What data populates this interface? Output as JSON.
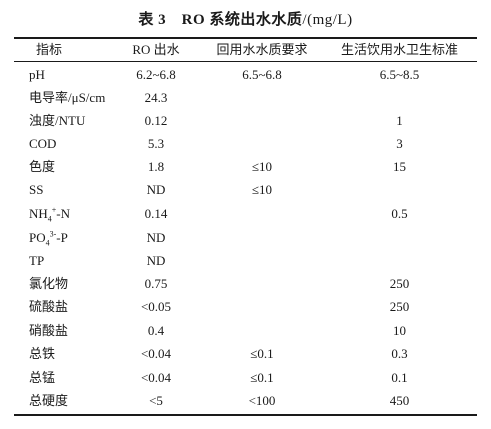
{
  "title": {
    "label": "表 3　RO 系统出水水质",
    "unit": "/(mg/L)"
  },
  "table": {
    "headers": {
      "indicator": "指标",
      "ro": "RO 出水",
      "reuse": "回用水水质要求",
      "standard": "生活饮用水卫生标准"
    },
    "rows": [
      {
        "name": "pH",
        "ro": "6.2~6.8",
        "reuse": "6.5~6.8",
        "standard": "6.5~8.5"
      },
      {
        "name": "电导率/μS/cm",
        "ro": "24.3",
        "reuse": "",
        "standard": ""
      },
      {
        "name": "浊度/NTU",
        "ro": "0.12",
        "reuse": "",
        "standard": "1"
      },
      {
        "name": "COD",
        "ro": "5.3",
        "reuse": "",
        "standard": "3"
      },
      {
        "name": "色度",
        "ro": "1.8",
        "reuse": "≤10",
        "standard": "15"
      },
      {
        "name": "SS",
        "ro": "ND",
        "reuse": "≤10",
        "standard": ""
      },
      {
        "name_base": "NH",
        "name_sub": "4",
        "name_sup": "+",
        "name_rest": "-N",
        "ro": "0.14",
        "reuse": "",
        "standard": "0.5"
      },
      {
        "name_base": "PO",
        "name_sub": "4",
        "name_sup": "3-",
        "name_rest": "-P",
        "ro": "ND",
        "reuse": "",
        "standard": ""
      },
      {
        "name": "TP",
        "ro": "ND",
        "reuse": "",
        "standard": ""
      },
      {
        "name": "氯化物",
        "ro": "0.75",
        "reuse": "",
        "standard": "250"
      },
      {
        "name": "硫酸盐",
        "ro": "<0.05",
        "reuse": "",
        "standard": "250"
      },
      {
        "name": "硝酸盐",
        "ro": "0.4",
        "reuse": "",
        "standard": "10"
      },
      {
        "name": "总铁",
        "ro": "<0.04",
        "reuse": "≤0.1",
        "standard": "0.3"
      },
      {
        "name": "总锰",
        "ro": "<0.04",
        "reuse": "≤0.1",
        "standard": "0.1"
      },
      {
        "name": "总硬度",
        "ro": "<5",
        "reuse": "<100",
        "standard": "450"
      }
    ]
  }
}
